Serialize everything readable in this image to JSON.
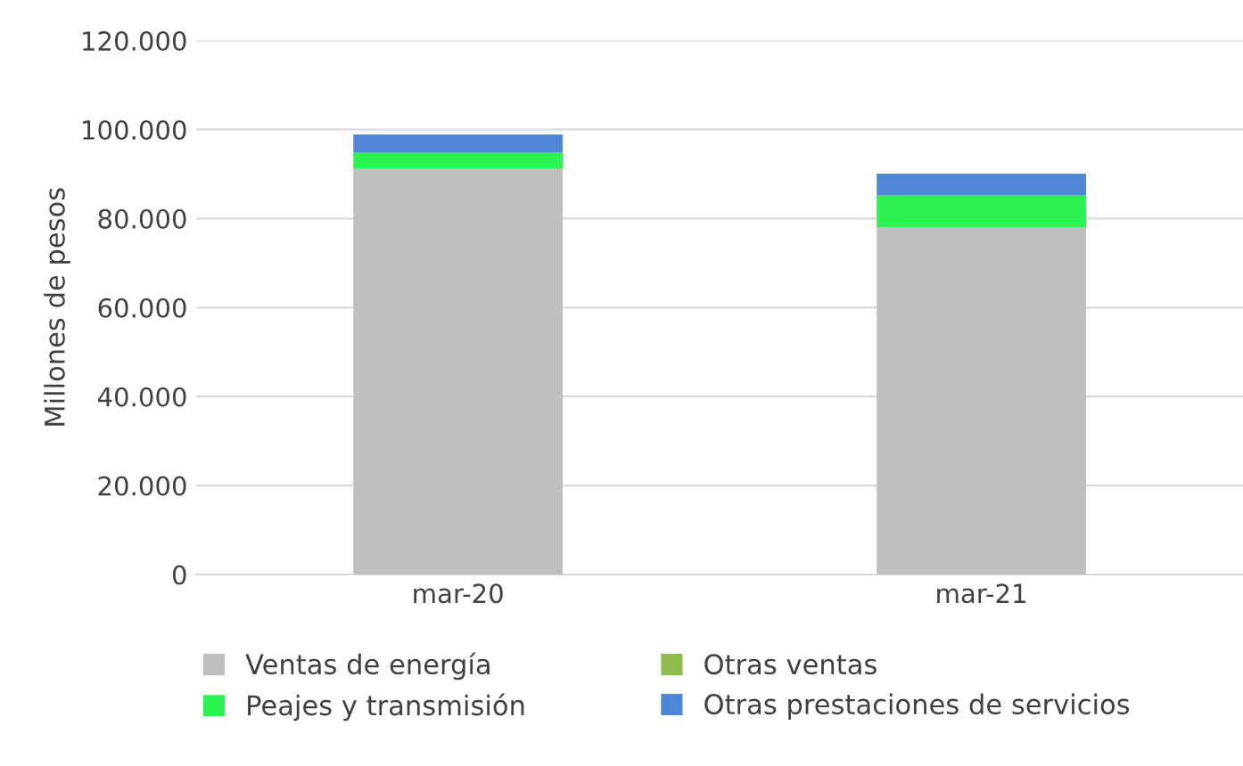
{
  "chart_data": {
    "type": "bar",
    "stacked": true,
    "ylabel": "Millones de pesos",
    "categories": [
      "mar-20",
      "mar-21"
    ],
    "series": [
      {
        "name": "Ventas de energía",
        "color": "#bfbfbf",
        "values": [
          91300,
          78100
        ]
      },
      {
        "name": "Peajes y transmisión",
        "color": "#2cf24f",
        "values": [
          3500,
          7100
        ]
      },
      {
        "name": "Otras ventas",
        "color": "#8fbc4f",
        "values": [
          0,
          0
        ]
      },
      {
        "name": "Otras prestaciones de servicios",
        "color": "#4f86d6",
        "values": [
          4100,
          4900
        ]
      }
    ],
    "ylim": [
      0,
      120000
    ],
    "yticks": [
      {
        "value": 0,
        "label": "0"
      },
      {
        "value": 20000,
        "label": "20.000"
      },
      {
        "value": 40000,
        "label": "40.000"
      },
      {
        "value": 60000,
        "label": "60.000"
      },
      {
        "value": 80000,
        "label": "80.000"
      },
      {
        "value": 100000,
        "label": "100.000"
      },
      {
        "value": 120000,
        "label": "120.000"
      }
    ],
    "grid": "y",
    "legend": "bottom"
  }
}
